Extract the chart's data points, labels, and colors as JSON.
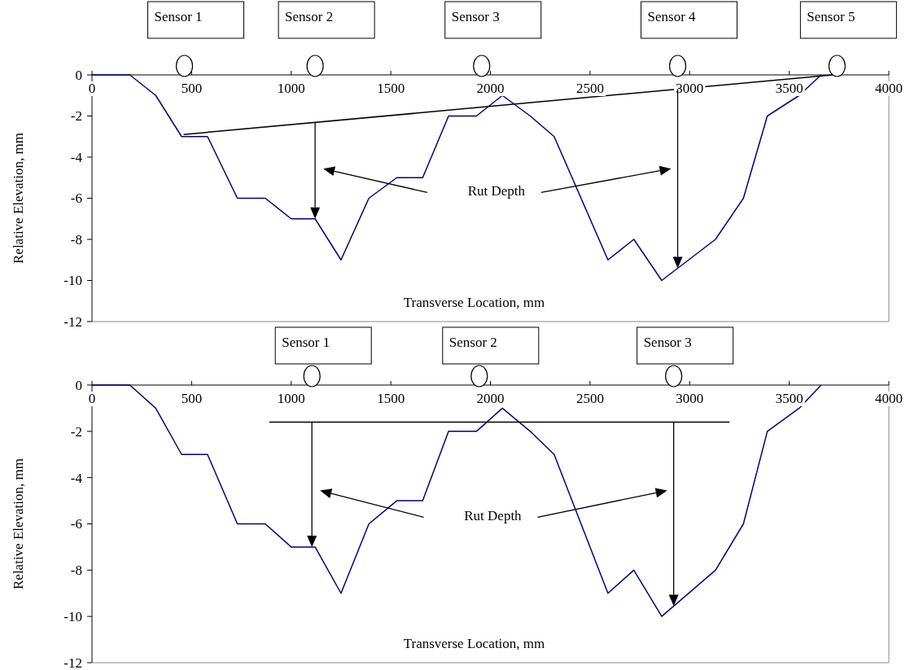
{
  "chart_data": [
    {
      "type": "line",
      "xlabel": "Transverse Location, mm",
      "ylabel": "Relative Elevation, mm",
      "xlim": [
        0,
        4000
      ],
      "xticks": [
        0,
        500,
        1000,
        1500,
        2000,
        2500,
        3000,
        3500,
        4000
      ],
      "ylim": [
        -12,
        0
      ],
      "yticks": [
        -12,
        -10,
        -8,
        -6,
        -4,
        -2,
        0
      ],
      "marker": "none",
      "line_style": "solid",
      "series": [
        {
          "color": "#000080",
          "x": [
            0,
            190,
            320,
            450,
            580,
            730,
            870,
            1000,
            1120,
            1250,
            1390,
            1530,
            1660,
            1790,
            1930,
            2060,
            2200,
            2320,
            2590,
            2720,
            2860,
            3130,
            3270,
            3390,
            3550,
            3660
          ],
          "values": [
            0,
            0,
            -1,
            -3,
            -3,
            -6,
            -6,
            -7,
            -7,
            -9,
            -6,
            -5,
            -5,
            -2,
            -2,
            -1,
            -2,
            -3,
            -9,
            -8,
            -10,
            -8,
            -6,
            -2,
            -1,
            0
          ]
        },
        {
          "color": "#000000",
          "x": [
            460,
            3720
          ],
          "values": [
            -2.9,
            0
          ]
        }
      ],
      "annotations": [
        "Sensor 1",
        "Sensor 2",
        "Sensor 3",
        "Sensor 4",
        "Sensor 5",
        "Rut Depth"
      ]
    },
    {
      "type": "line",
      "xlabel": "Transverse Location, mm",
      "ylabel": "Relative Elevation, mm",
      "xlim": [
        0,
        4000
      ],
      "xticks": [
        0,
        500,
        1000,
        1500,
        2000,
        2500,
        3000,
        3500,
        4000
      ],
      "ylim": [
        -12,
        0
      ],
      "yticks": [
        -12,
        -10,
        -8,
        -6,
        -4,
        -2,
        0
      ],
      "marker": "none",
      "line_style": "solid",
      "series": [
        {
          "color": "#000080",
          "x": [
            0,
            190,
            320,
            450,
            580,
            730,
            870,
            1000,
            1120,
            1250,
            1390,
            1530,
            1660,
            1790,
            1930,
            2060,
            2200,
            2320,
            2590,
            2720,
            2860,
            3130,
            3270,
            3390,
            3550,
            3660
          ],
          "values": [
            0,
            0,
            -1,
            -3,
            -3,
            -6,
            -6,
            -7,
            -7,
            -9,
            -6,
            -5,
            -5,
            -2,
            -2,
            -1,
            -2,
            -3,
            -9,
            -8,
            -10,
            -8,
            -6,
            -2,
            -1,
            0
          ]
        },
        {
          "color": "#000000",
          "x": [
            890,
            3200
          ],
          "values": [
            -1.6,
            -1.6
          ]
        }
      ],
      "annotations": [
        "Sensor 1",
        "Sensor 2",
        "Sensor 3",
        "Rut Depth"
      ]
    }
  ]
}
